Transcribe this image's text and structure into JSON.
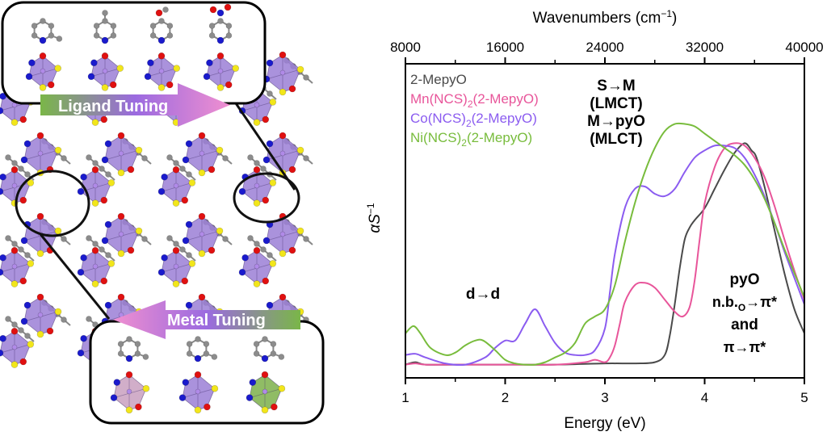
{
  "figure": {
    "left_panel": {
      "description": "Crystal packing of M(NCS)2(2-MepyO) coordination polymer with octahedral metal centres",
      "ligand_tuning_label": "Ligand Tuning",
      "metal_tuning_label": "Metal Tuning",
      "ligands_shown": [
        "2-methylpyridine N-oxide",
        "4-methylpyridine N-oxide",
        "4-methoxypyridine N-oxide",
        "4-nitropyridine N-oxide"
      ],
      "metals_shown": [
        "Mn",
        "Co",
        "Ni"
      ],
      "colors": {
        "octahedron_co": "#9b7fd6",
        "octahedron_mn": "#c9a0c0",
        "octahedron_ni": "#7db04a",
        "atom_n": "#1a1acc",
        "atom_o": "#e01010",
        "atom_s": "#f2e61a",
        "atom_c": "#8c8c8c",
        "arrow_green": "#7ab648",
        "arrow_purple": "#9b6ae0",
        "arrow_pink": "#f08fd0"
      }
    }
  },
  "chart_data": {
    "type": "line",
    "title": "",
    "xlabel": "Energy (eV)",
    "ylabel": "αS⁻¹",
    "ylabel_parts": {
      "main": "αS",
      "sup": "−1"
    },
    "xlim": [
      1,
      5
    ],
    "ylim": [
      -0.055,
      1.25
    ],
    "x_ticks": [
      1,
      2,
      3,
      4,
      5
    ],
    "x_tick_labels": [
      "1",
      "2",
      "3",
      "4",
      "5"
    ],
    "x_minor_ticks": [
      1.5,
      2.5,
      3.5,
      4.5
    ],
    "top_axis": {
      "label": "Wavenumbers (cm⁻¹)",
      "label_parts": {
        "main": "Wavenumbers (cm",
        "sup": "−1",
        "end": ")"
      },
      "ticks": [
        8000,
        16000,
        24000,
        32000,
        40000
      ],
      "tick_labels": [
        "8000",
        "16000",
        "24000",
        "32000",
        "40000"
      ],
      "minor_ticks": [
        12000,
        20000,
        28000,
        36000
      ],
      "range": [
        8000,
        40000
      ]
    },
    "y_ticks_shown": false,
    "grid": false,
    "legend_position": "top-left",
    "series": [
      {
        "name": "2-MepyO",
        "label_main": "2-MepyO",
        "color": "#4a4a4a",
        "x": [
          1.0,
          1.1,
          1.2,
          1.5,
          2.0,
          2.5,
          3.0,
          3.3,
          3.5,
          3.6,
          3.65,
          3.7,
          3.75,
          3.8,
          3.85,
          3.9,
          4.0,
          4.1,
          4.2,
          4.3,
          4.4,
          4.47,
          4.52,
          4.6,
          4.7,
          4.8,
          4.9,
          5.0
        ],
        "values": [
          0.0,
          0.01,
          0.0,
          0.0,
          0.0,
          0.0,
          0.005,
          0.005,
          0.01,
          0.04,
          0.12,
          0.25,
          0.4,
          0.52,
          0.57,
          0.6,
          0.65,
          0.73,
          0.81,
          0.88,
          0.92,
          0.89,
          0.86,
          0.74,
          0.56,
          0.38,
          0.23,
          0.13
        ]
      },
      {
        "name": "Mn(NCS)2(2-MepyO)",
        "label_main": "Mn(NCS)",
        "label_sub": "2",
        "label_end": "(2-MepyO)",
        "color": "#e8559a",
        "x": [
          1.0,
          1.1,
          1.2,
          1.5,
          2.0,
          2.5,
          2.8,
          2.9,
          3.0,
          3.05,
          3.1,
          3.15,
          3.2,
          3.3,
          3.4,
          3.5,
          3.6,
          3.7,
          3.78,
          3.85,
          3.9,
          3.95,
          4.0,
          4.1,
          4.2,
          4.3,
          4.4,
          4.5,
          4.6,
          4.7,
          4.8,
          4.9,
          5.0
        ],
        "values": [
          0.0,
          0.005,
          0.0,
          0.0,
          0.0,
          0.0,
          0.01,
          0.02,
          0.01,
          0.03,
          0.08,
          0.17,
          0.26,
          0.33,
          0.34,
          0.32,
          0.27,
          0.22,
          0.2,
          0.24,
          0.35,
          0.52,
          0.67,
          0.82,
          0.9,
          0.92,
          0.91,
          0.86,
          0.78,
          0.66,
          0.52,
          0.39,
          0.27
        ]
      },
      {
        "name": "Co(NCS)2(2-MepyO)",
        "label_main": "Co(NCS)",
        "label_sub": "2",
        "label_end": "(2-MepyO)",
        "color": "#8b5cf0",
        "x": [
          1.0,
          1.1,
          1.2,
          1.4,
          1.6,
          1.8,
          1.9,
          2.0,
          2.1,
          2.2,
          2.3,
          2.4,
          2.5,
          2.6,
          2.7,
          2.8,
          2.9,
          3.0,
          3.05,
          3.1,
          3.2,
          3.3,
          3.4,
          3.5,
          3.6,
          3.7,
          3.8,
          3.9,
          4.0,
          4.1,
          4.2,
          4.3,
          4.4,
          4.5,
          4.6,
          4.7,
          4.8,
          4.9,
          5.0
        ],
        "values": [
          0.04,
          0.045,
          0.03,
          0.005,
          0.0,
          0.03,
          0.07,
          0.1,
          0.1,
          0.17,
          0.23,
          0.16,
          0.09,
          0.05,
          0.04,
          0.04,
          0.06,
          0.15,
          0.3,
          0.46,
          0.65,
          0.73,
          0.74,
          0.71,
          0.7,
          0.73,
          0.8,
          0.86,
          0.89,
          0.91,
          0.91,
          0.9,
          0.86,
          0.79,
          0.7,
          0.59,
          0.47,
          0.36,
          0.25
        ]
      },
      {
        "name": "Ni(NCS)2(2-MepyO)",
        "label_main": "Ni(NCS)",
        "label_sub": "2",
        "label_end": "(2-MepyO)",
        "color": "#78bc3c",
        "x": [
          1.0,
          1.08,
          1.15,
          1.25,
          1.4,
          1.5,
          1.6,
          1.7,
          1.78,
          1.9,
          2.0,
          2.1,
          2.2,
          2.3,
          2.4,
          2.5,
          2.6,
          2.7,
          2.8,
          2.9,
          3.0,
          3.1,
          3.2,
          3.3,
          3.4,
          3.5,
          3.6,
          3.7,
          3.8,
          3.9,
          4.0,
          4.1,
          4.2,
          4.3,
          4.4,
          4.5,
          4.6,
          4.7,
          4.8,
          4.9,
          5.0
        ],
        "values": [
          0.13,
          0.16,
          0.13,
          0.07,
          0.04,
          0.05,
          0.08,
          0.1,
          0.1,
          0.06,
          0.02,
          0.005,
          0.0,
          0.0,
          0.01,
          0.03,
          0.05,
          0.09,
          0.17,
          0.2,
          0.23,
          0.33,
          0.51,
          0.67,
          0.8,
          0.9,
          0.97,
          1.0,
          1.0,
          0.99,
          0.96,
          0.93,
          0.9,
          0.87,
          0.83,
          0.77,
          0.69,
          0.59,
          0.48,
          0.38,
          0.28
        ]
      }
    ],
    "annotations": [
      {
        "id": "lmct",
        "lines": [
          "S→M",
          "(LMCT)",
          "M→pyO",
          "(MLCT)"
        ],
        "x": 3.45,
        "y": 1.08
      },
      {
        "id": "dd",
        "lines": [
          "d→d"
        ],
        "x": 1.4,
        "y": 0.3
      },
      {
        "id": "pyo",
        "lines": [
          "pyO",
          "n.b.",
          "and",
          "π→π*"
        ],
        "pyo_line2": {
          "main": "n.b.",
          "sub": "O",
          "end": "→π*"
        },
        "x": 4.72,
        "y": 0.27
      }
    ]
  }
}
